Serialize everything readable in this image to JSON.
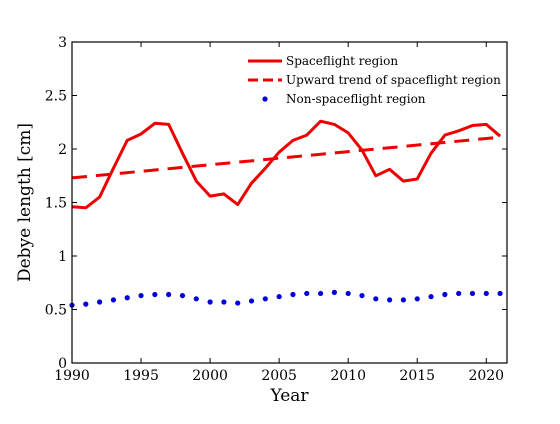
{
  "chart_data": {
    "type": "line",
    "title": "",
    "xlabel": "Year",
    "ylabel": "Debye length [cm]",
    "xlim": [
      1990,
      2021.5
    ],
    "ylim": [
      0,
      3
    ],
    "xticks": [
      1990,
      1995,
      2000,
      2005,
      2010,
      2015,
      2020
    ],
    "xtick_labels": [
      "1990",
      "1995",
      "2000",
      "2005",
      "2010",
      "2015",
      "2020"
    ],
    "yticks": [
      0,
      0.5,
      1,
      1.5,
      2,
      2.5,
      3
    ],
    "ytick_labels": [
      "0",
      "0.5",
      "1",
      "1.5",
      "2",
      "2.5",
      "3"
    ],
    "grid": false,
    "legend_position": "top-right",
    "series": [
      {
        "name": "Spaceflight region",
        "style": "solid-line",
        "color": "#ee0000",
        "x": [
          1990,
          1991,
          1992,
          1993,
          1994,
          1995,
          1996,
          1997,
          1998,
          1999,
          2000,
          2001,
          2002,
          2003,
          2004,
          2005,
          2006,
          2007,
          2008,
          2009,
          2010,
          2011,
          2012,
          2013,
          2014,
          2015,
          2016,
          2017,
          2018,
          2019,
          2020,
          2021
        ],
        "y": [
          1.46,
          1.45,
          1.55,
          1.82,
          2.08,
          2.14,
          2.24,
          2.23,
          1.96,
          1.7,
          1.56,
          1.58,
          1.48,
          1.68,
          1.82,
          1.97,
          2.08,
          2.13,
          2.26,
          2.23,
          2.15,
          1.99,
          1.75,
          1.81,
          1.7,
          1.72,
          1.96,
          2.13,
          2.17,
          2.22,
          2.23,
          2.12
        ]
      },
      {
        "name": "Upward trend of spaceflight region",
        "style": "dashed-line",
        "color": "#ee0000",
        "x": [
          1990,
          2021
        ],
        "y": [
          1.73,
          2.11
        ]
      },
      {
        "name": "Non-spaceflight region",
        "style": "dots",
        "color": "#0000dd",
        "x": [
          1990,
          1991,
          1992,
          1993,
          1994,
          1995,
          1996,
          1997,
          1998,
          1999,
          2000,
          2001,
          2002,
          2003,
          2004,
          2005,
          2006,
          2007,
          2008,
          2009,
          2010,
          2011,
          2012,
          2013,
          2014,
          2015,
          2016,
          2017,
          2018,
          2019,
          2020,
          2021
        ],
        "y": [
          0.54,
          0.55,
          0.57,
          0.59,
          0.61,
          0.63,
          0.64,
          0.64,
          0.63,
          0.6,
          0.57,
          0.57,
          0.56,
          0.58,
          0.6,
          0.62,
          0.64,
          0.65,
          0.65,
          0.66,
          0.65,
          0.63,
          0.6,
          0.59,
          0.59,
          0.6,
          0.62,
          0.64,
          0.65,
          0.65,
          0.65,
          0.65
        ]
      }
    ]
  }
}
